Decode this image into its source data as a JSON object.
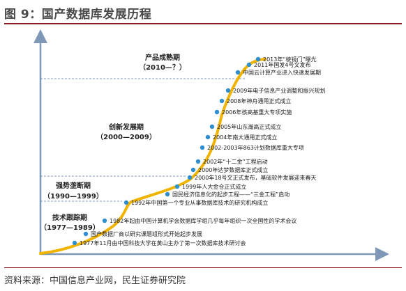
{
  "title": "图 9：国产数据库发展历程",
  "source": "资料来源：中国信息产业网，民生证券研究院",
  "colors": {
    "accent": "#8a1c24",
    "curve": "#f0b400",
    "dot": "#2f8fd1",
    "axis": "#7f98b8"
  },
  "phases": [
    {
      "name": "产品成熟期",
      "years": "（2010—？）"
    },
    {
      "name": "创新发展期",
      "years": "（2000—2009）"
    },
    {
      "name": "强势垄断期",
      "years": "（1990—1999）"
    },
    {
      "name": "技术跟踪期",
      "years": "（1977—1989）"
    }
  ],
  "events": [
    "1977年11月由中国科技大学在黄山主办了第一次数据库技术研讨会",
    "国产数据厂商以研究课题组形式开始起步发展",
    "1982年起由中国计算机学会数据库学组几乎每年组织一次全国性的学术会议",
    "1992年中国第一个专业从事数据库技术的研究机构成立",
    "国民经济信息化的起步工程——“三金工程”启动",
    "1999年人大金仓正式成立",
    "2000年18号文正式发布，基础软件发展迎来春天",
    "2000年达梦数据库正式成立",
    "2002年“十二金”工程启动",
    "2002-2003年863计划数据库重大专项",
    "2004年南大通用正式成立",
    "2005年山东瀚高正式成立",
    "2006年核高基重大专项实施",
    "2008年神舟通用正式成立",
    "2009年电子信息产业调整和振兴规划",
    "中国云计算产业进入快速发展期",
    "2011年国发4号文发布",
    "2013年“棱镜门”曝光"
  ]
}
